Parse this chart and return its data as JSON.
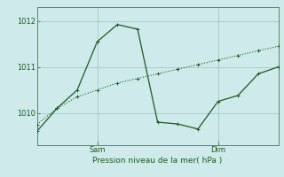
{
  "background_color": "#ceeaea",
  "grid_color": "#aacece",
  "line_color": "#1a5c1a",
  "marker_color": "#1a5c1a",
  "xlabel": "Pression niveau de la mer( hPa )",
  "yticks": [
    1010,
    1011,
    1012
  ],
  "xtick_labels": [
    "Sam",
    "Dim"
  ],
  "xtick_positions": [
    0.25,
    0.75
  ],
  "line1_x": [
    0.0,
    0.083,
    0.167,
    0.25,
    0.333,
    0.417,
    0.5,
    0.583,
    0.667,
    0.75,
    0.833,
    0.917,
    1.0
  ],
  "line1_y": [
    1009.75,
    1010.1,
    1010.35,
    1010.5,
    1010.65,
    1010.75,
    1010.85,
    1010.95,
    1011.05,
    1011.15,
    1011.25,
    1011.35,
    1011.45
  ],
  "line2_x": [
    0.0,
    0.083,
    0.167,
    0.25,
    0.333,
    0.417,
    0.5,
    0.583,
    0.667,
    0.75,
    0.833,
    0.917,
    1.0
  ],
  "line2_y": [
    1009.6,
    1010.1,
    1010.5,
    1011.55,
    1011.92,
    1011.82,
    1009.8,
    1009.76,
    1009.65,
    1010.25,
    1010.38,
    1010.85,
    1011.0
  ],
  "ylim": [
    1009.3,
    1012.3
  ],
  "xlim": [
    0.0,
    1.0
  ]
}
